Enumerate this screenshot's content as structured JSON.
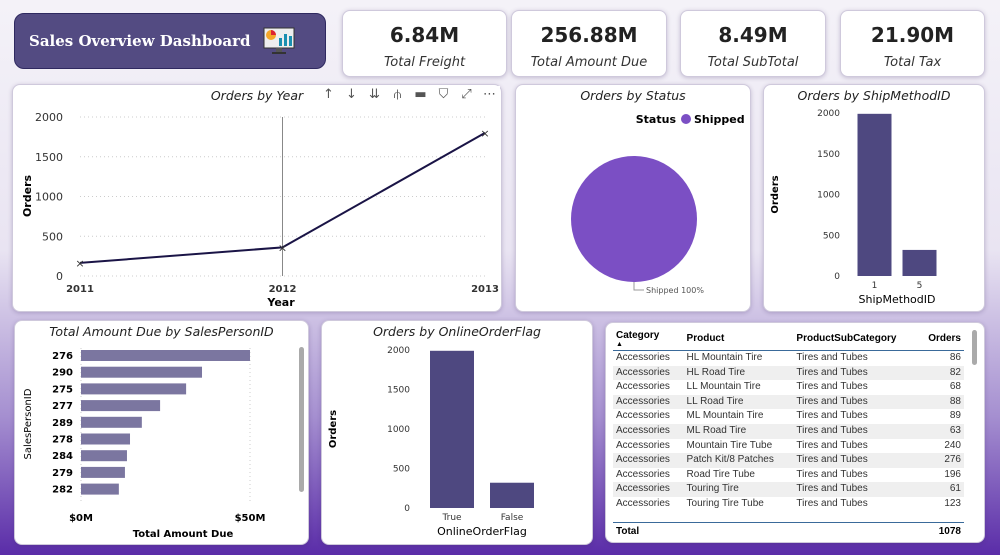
{
  "header": {
    "title": "Sales Overview Dashboard",
    "icon": "dashboard-monitor-icon"
  },
  "kpis": [
    {
      "value": "6.84M",
      "label": "Total Freight"
    },
    {
      "value": "256.88M",
      "label": "Total Amount Due"
    },
    {
      "value": "8.49M",
      "label": "Total SubTotal"
    },
    {
      "value": "21.90M",
      "label": "Total Tax"
    }
  ],
  "toolbar": [
    "↑",
    "↓",
    "⇊",
    "⫛",
    "▬",
    "⛉",
    "⤢",
    "⋯"
  ],
  "colors": {
    "banner": "#534b82",
    "bar": "#4e4880",
    "pie": "#7b4fc4",
    "line": "#1a1446"
  },
  "chart_data": [
    {
      "type": "line",
      "title": "Orders by Year",
      "xlabel": "Year",
      "ylabel": "Orders",
      "categories": [
        "2011",
        "2012",
        "2013"
      ],
      "values": [
        165,
        360,
        1800
      ],
      "ylim": [
        0,
        2000
      ],
      "yticks": [
        "0",
        "500",
        "1000",
        "1500",
        "2000"
      ],
      "grid": true
    },
    {
      "type": "pie",
      "title": "Orders by Status",
      "legend_title": "Status",
      "legend": [
        "Shipped"
      ],
      "values": [
        100
      ],
      "data_label": "Shipped 100%",
      "legend_position": "top-right"
    },
    {
      "type": "bar",
      "title": "Orders by ShipMethodID",
      "xlabel": "ShipMethodID",
      "ylabel": "Orders",
      "categories": [
        "1",
        "5"
      ],
      "values": [
        1990,
        320
      ],
      "ylim": [
        0,
        2000
      ],
      "yticks": [
        "0",
        "500",
        "1000",
        "1500",
        "2000"
      ]
    },
    {
      "type": "bar",
      "orientation": "horizontal",
      "title": "Total Amount Due by SalesPersonID",
      "xlabel": "Total Amount Due",
      "ylabel": "SalesPersonID",
      "categories": [
        "276",
        "290",
        "275",
        "277",
        "289",
        "278",
        "284",
        "279",
        "282"
      ],
      "values": [
        50,
        35.8,
        31.1,
        23.4,
        18,
        14.5,
        13.6,
        13,
        11.2
      ],
      "unit": "$M",
      "xlim": [
        0,
        50
      ],
      "xticks": [
        "$0M",
        "$50M"
      ]
    },
    {
      "type": "bar",
      "title": "Orders by OnlineOrderFlag",
      "xlabel": "OnlineOrderFlag",
      "ylabel": "Orders",
      "categories": [
        "True",
        "False"
      ],
      "values": [
        1990,
        320
      ],
      "ylim": [
        0,
        2000
      ],
      "yticks": [
        "0",
        "500",
        "1000",
        "1500",
        "2000"
      ]
    }
  ],
  "table": {
    "columns": [
      "Category",
      "Product",
      "ProductSubCategory",
      "Orders"
    ],
    "rows": [
      [
        "Accessories",
        "HL Mountain Tire",
        "Tires and Tubes",
        "86"
      ],
      [
        "Accessories",
        "HL Road Tire",
        "Tires and Tubes",
        "82"
      ],
      [
        "Accessories",
        "LL Mountain Tire",
        "Tires and Tubes",
        "68"
      ],
      [
        "Accessories",
        "LL Road Tire",
        "Tires and Tubes",
        "88"
      ],
      [
        "Accessories",
        "ML Mountain Tire",
        "Tires and Tubes",
        "89"
      ],
      [
        "Accessories",
        "ML Road Tire",
        "Tires and Tubes",
        "63"
      ],
      [
        "Accessories",
        "Mountain Tire Tube",
        "Tires and Tubes",
        "240"
      ],
      [
        "Accessories",
        "Patch Kit/8 Patches",
        "Tires and Tubes",
        "276"
      ],
      [
        "Accessories",
        "Road Tire Tube",
        "Tires and Tubes",
        "196"
      ],
      [
        "Accessories",
        "Touring Tire",
        "Tires and Tubes",
        "61"
      ],
      [
        "Accessories",
        "Touring Tire Tube",
        "Tires and Tubes",
        "123"
      ]
    ],
    "total_label": "Total",
    "total_value": "1078"
  }
}
